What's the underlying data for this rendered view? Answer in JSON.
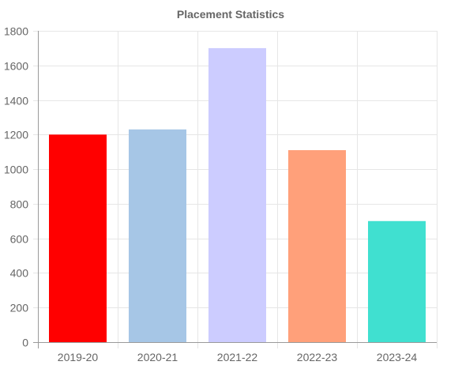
{
  "chart_data": {
    "type": "bar",
    "title": "Placement Statistics",
    "categories": [
      "2019-20",
      "2020-21",
      "2021-22",
      "2022-23",
      "2023-24"
    ],
    "values": [
      1200,
      1230,
      1700,
      1110,
      700
    ],
    "colors": [
      "#ff0000",
      "#a6c6e6",
      "#ccccff",
      "#ffa07a",
      "#40e0d0"
    ],
    "ylim": [
      0,
      1800
    ],
    "yticks": [
      0,
      200,
      400,
      600,
      800,
      1000,
      1200,
      1400,
      1600,
      1800
    ],
    "xlabel": "",
    "ylabel": "",
    "grid": true,
    "legend": "none"
  }
}
